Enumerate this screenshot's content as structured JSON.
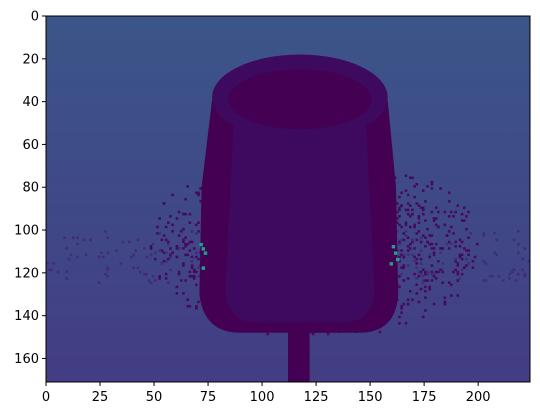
{
  "chart_data": {
    "type": "heatmap",
    "title": "",
    "xlabel": "",
    "ylabel": "",
    "colormap": "viridis",
    "image_size": {
      "width": 224,
      "height": 171
    },
    "xlim": [
      0,
      224
    ],
    "ylim": [
      171,
      0
    ],
    "x_ticks": [
      0,
      25,
      50,
      75,
      100,
      125,
      150,
      175,
      200
    ],
    "y_ticks": [
      0,
      20,
      40,
      60,
      80,
      100,
      120,
      140,
      160
    ],
    "x_tick_labels": [
      "0",
      "25",
      "50",
      "75",
      "100",
      "125",
      "150",
      "175",
      "200"
    ],
    "y_tick_labels": [
      "0",
      "20",
      "40",
      "60",
      "80",
      "100",
      "120",
      "140",
      "160"
    ],
    "regions": {
      "background": {
        "description_values": "smooth vertical gradient",
        "top_color": "#3b5589",
        "bottom_color": "#433d84"
      },
      "foreground_cup": {
        "x_range": [
          75,
          160
        ],
        "y_range": [
          28,
          148
        ],
        "rim_y": 28,
        "color": "#440154",
        "shade_color": "#3e0a5f"
      },
      "shadow_halo": {
        "x_range": [
          48,
          200
        ],
        "y_range": [
          63,
          150
        ],
        "color": "#450a5a"
      },
      "stem": {
        "x_range": [
          112,
          122
        ],
        "y_range": [
          146,
          171
        ],
        "color": "#440154"
      },
      "highlight_pixels": {
        "color": "#21a08a",
        "points": [
          [
            71,
            106
          ],
          [
            72,
            108
          ],
          [
            73,
            110
          ],
          [
            72,
            117
          ],
          [
            160,
            107
          ],
          [
            161,
            110
          ],
          [
            162,
            113
          ],
          [
            159,
            115
          ]
        ]
      }
    }
  }
}
